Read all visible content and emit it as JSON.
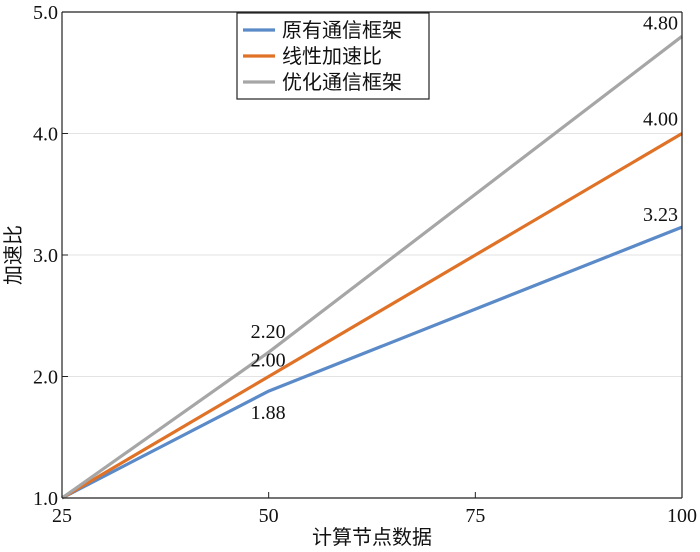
{
  "chart_data": {
    "type": "line",
    "xlabel": "计算节点数据",
    "ylabel": "加速比",
    "xlim": [
      25,
      100
    ],
    "ylim": [
      1.0,
      5.0
    ],
    "x_ticks": [
      "25",
      "50",
      "75",
      "100"
    ],
    "y_ticks": [
      "1.0",
      "2.0",
      "3.0",
      "4.0",
      "5.0"
    ],
    "grid": "horizontal",
    "legend_position": "top",
    "series": [
      {
        "name": "原有通信框架",
        "color": "#5b8ac8",
        "x": [
          25,
          50,
          100
        ],
        "values": [
          1.0,
          1.88,
          3.23
        ],
        "labels": [
          {
            "x": 50,
            "text": "1.88"
          },
          {
            "x": 100,
            "text": "3.23"
          }
        ]
      },
      {
        "name": "线性加速比",
        "color": "#e07227",
        "x": [
          25,
          50,
          100
        ],
        "values": [
          1.0,
          2.0,
          4.0
        ],
        "labels": [
          {
            "x": 50,
            "text": "2.00"
          },
          {
            "x": 100,
            "text": "4.00"
          }
        ]
      },
      {
        "name": "优化通信框架",
        "color": "#a6a6a6",
        "x": [
          25,
          50,
          100
        ],
        "values": [
          1.0,
          2.2,
          4.8
        ],
        "labels": [
          {
            "x": 50,
            "text": "2.20"
          },
          {
            "x": 100,
            "text": "4.80"
          }
        ]
      }
    ]
  }
}
